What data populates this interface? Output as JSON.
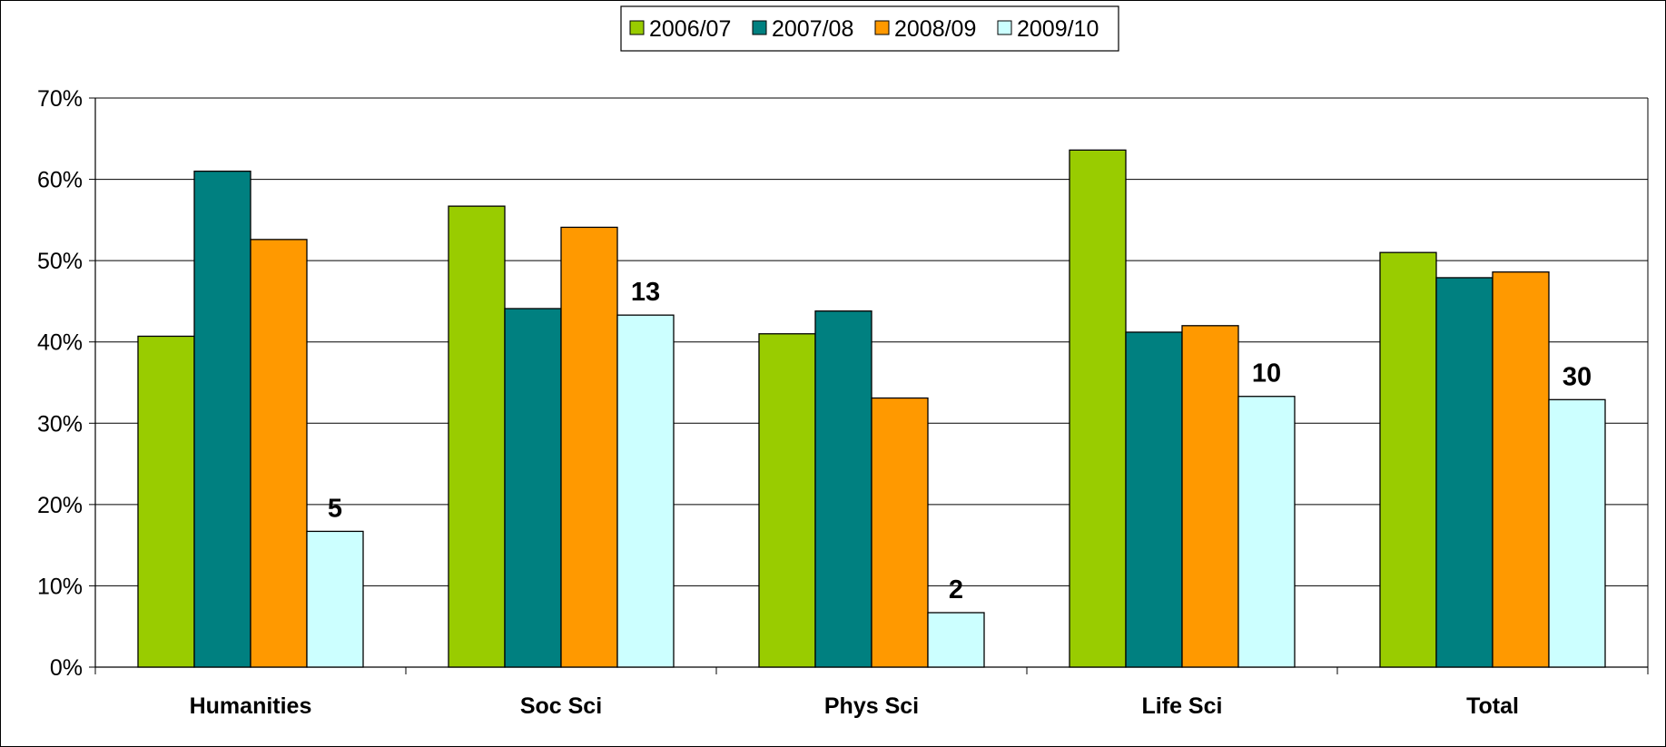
{
  "chart_data": {
    "type": "bar",
    "categories": [
      "Humanities",
      "Soc Sci",
      "Phys Sci",
      "Life Sci",
      "Total"
    ],
    "series": [
      {
        "name": "2006/07",
        "color": "#99cc00",
        "values": [
          40.7,
          56.7,
          41.0,
          63.6,
          51.0
        ]
      },
      {
        "name": "2007/08",
        "color": "#008080",
        "values": [
          61.0,
          44.1,
          43.8,
          41.2,
          47.9
        ]
      },
      {
        "name": "2008/09",
        "color": "#ff9900",
        "values": [
          52.6,
          54.1,
          33.1,
          42.0,
          48.6
        ]
      },
      {
        "name": "2009/10",
        "color": "#ccffff",
        "values": [
          16.7,
          43.3,
          6.7,
          33.3,
          32.9
        ]
      }
    ],
    "data_labels": {
      "series": "2009/10",
      "labels": [
        "5",
        "13",
        "2",
        "10",
        "30"
      ]
    },
    "yticks": [
      "0%",
      "10%",
      "20%",
      "30%",
      "40%",
      "50%",
      "60%",
      "70%"
    ],
    "ylim": [
      0,
      70
    ],
    "grid": true,
    "legend": "top-center",
    "title": "",
    "xlabel": "",
    "ylabel": ""
  }
}
